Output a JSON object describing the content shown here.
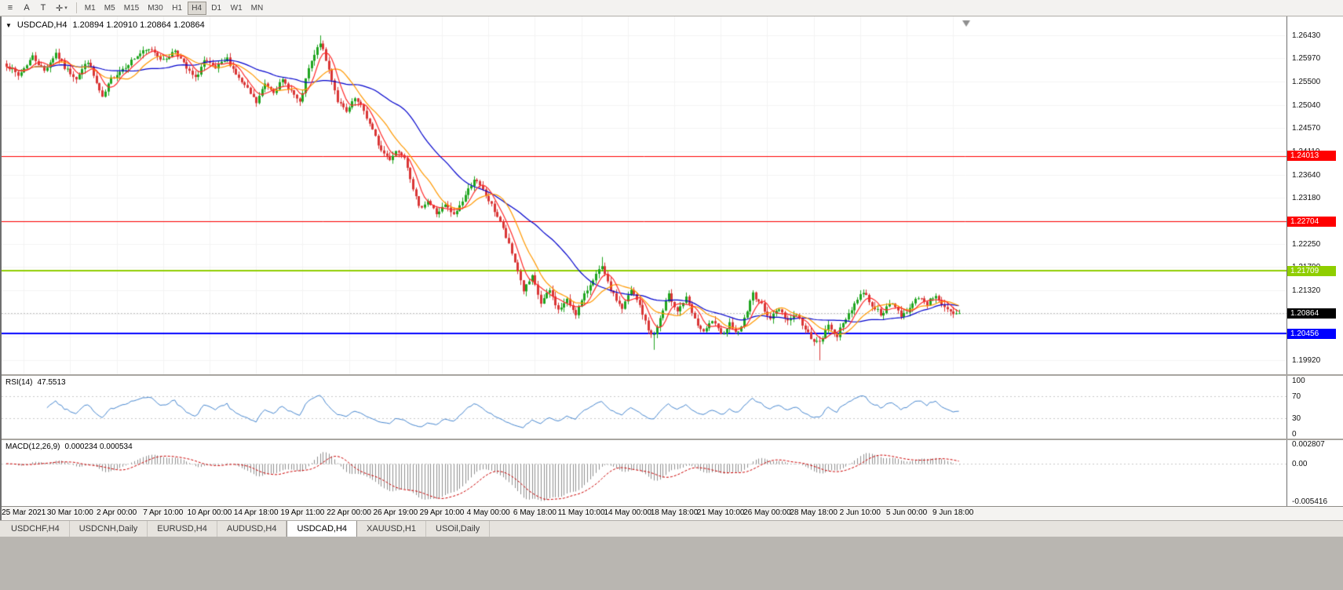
{
  "toolbar": {
    "tools": [
      {
        "name": "menu",
        "glyph": "≡"
      },
      {
        "name": "font",
        "glyph": "A"
      },
      {
        "name": "text",
        "glyph": "T"
      },
      {
        "name": "crosshair",
        "glyph": "✛",
        "caret": "▾"
      }
    ],
    "timeframes": [
      {
        "label": "M1",
        "active": false
      },
      {
        "label": "M5",
        "active": false
      },
      {
        "label": "M15",
        "active": false
      },
      {
        "label": "M30",
        "active": false
      },
      {
        "label": "H1",
        "active": false
      },
      {
        "label": "H4",
        "active": true
      },
      {
        "label": "D1",
        "active": false
      },
      {
        "label": "W1",
        "active": false
      },
      {
        "label": "MN",
        "active": false
      }
    ]
  },
  "tabs": [
    {
      "label": "USDCHF,H4",
      "active": false
    },
    {
      "label": "USDCNH,Daily",
      "active": false
    },
    {
      "label": "EURUSD,H4",
      "active": false
    },
    {
      "label": "AUDUSD,H4",
      "active": false
    },
    {
      "label": "USDCAD,H4",
      "active": true
    },
    {
      "label": "XAUUSD,H1",
      "active": false
    },
    {
      "label": "USOil,Daily",
      "active": false
    }
  ],
  "chart_data": [
    {
      "type": "candlestick",
      "title": "USDCAD,H4",
      "collapse_glyph": "▼",
      "ohlc_text": "1.20894 1.20910 1.20864 1.20864",
      "y_range": [
        1.1964,
        1.2681
      ],
      "y_ticks": [
        "1.26430",
        "1.25970",
        "1.25500",
        "1.25040",
        "1.24570",
        "1.24110",
        "1.23640",
        "1.23180",
        "1.22720",
        "1.22250",
        "1.21790",
        "1.21320",
        "1.20850",
        "1.20390",
        "1.19920"
      ],
      "x_labels": [
        "25 Mar 2021",
        "30 Mar 10:00",
        "2 Apr 00:00",
        "7 Apr 10:00",
        "10 Apr 00:00",
        "14 Apr 18:00",
        "19 Apr 11:00",
        "22 Apr 00:00",
        "26 Apr 19:00",
        "29 Apr 10:00",
        "4 May 00:00",
        "6 May 18:00",
        "11 May 10:00",
        "14 May 00:00",
        "18 May 18:00",
        "21 May 10:00",
        "26 May 00:00",
        "28 May 18:00",
        "2 Jun 10:00",
        "5 Jun 00:00",
        "9 Jun 18:00"
      ],
      "candle_count": 329,
      "colors": {
        "bull": "#1fa51f",
        "bear": "#d93636",
        "grid": "#f3f3f3",
        "bid_line": "#bfbfbf",
        "shift_marker": "#8f8f8f"
      },
      "moving_averages": [
        {
          "period": 34,
          "color": "#0000cd"
        },
        {
          "period": 13,
          "color": "#ff9900"
        },
        {
          "period": 6,
          "color": "#ff2a2a"
        }
      ],
      "hlines": [
        {
          "price": 1.24013,
          "label": "1.24013",
          "color": "#ff0000",
          "width": 1
        },
        {
          "price": 1.22704,
          "label": "1.22704",
          "color": "#ff0000",
          "width": 1
        },
        {
          "price": 1.21709,
          "label": "1.21709",
          "color": "#8fce00",
          "width": 2
        },
        {
          "price": 1.20456,
          "label": "1.20456",
          "color": "#0000ff",
          "width": 2
        }
      ],
      "current_price": {
        "value": 1.20864,
        "label": "1.20864",
        "box_color": "#000000"
      },
      "price_path": [
        [
          0,
          1.2585
        ],
        [
          4,
          1.2562
        ],
        [
          9,
          1.2601
        ],
        [
          13,
          1.2572
        ],
        [
          17,
          1.2608
        ],
        [
          20,
          1.2578
        ],
        [
          24,
          1.2558
        ],
        [
          28,
          1.2592
        ],
        [
          33,
          1.2516
        ],
        [
          36,
          1.2556
        ],
        [
          41,
          1.2582
        ],
        [
          46,
          1.2607
        ],
        [
          50,
          1.2616
        ],
        [
          54,
          1.2592
        ],
        [
          58,
          1.2614
        ],
        [
          62,
          1.2576
        ],
        [
          65,
          1.2556
        ],
        [
          68,
          1.2592
        ],
        [
          72,
          1.2576
        ],
        [
          76,
          1.2596
        ],
        [
          80,
          1.2556
        ],
        [
          83,
          1.2534
        ],
        [
          86,
          1.2508
        ],
        [
          89,
          1.2546
        ],
        [
          92,
          1.2532
        ],
        [
          95,
          1.2552
        ],
        [
          98,
          1.2532
        ],
        [
          101,
          1.2506
        ],
        [
          104,
          1.2576
        ],
        [
          108,
          1.263
        ],
        [
          110,
          1.2592
        ],
        [
          112,
          1.2556
        ],
        [
          114,
          1.2512
        ],
        [
          117,
          1.2488
        ],
        [
          120,
          1.2516
        ],
        [
          123,
          1.2492
        ],
        [
          126,
          1.2452
        ],
        [
          129,
          1.2412
        ],
        [
          132,
          1.2396
        ],
        [
          134,
          1.2412
        ],
        [
          137,
          1.2402
        ],
        [
          140,
          1.2338
        ],
        [
          142,
          1.2297
        ],
        [
          145,
          1.2312
        ],
        [
          148,
          1.2286
        ],
        [
          151,
          1.2302
        ],
        [
          154,
          1.2282
        ],
        [
          157,
          1.2312
        ],
        [
          161,
          1.2356
        ],
        [
          164,
          1.2332
        ],
        [
          167,
          1.2302
        ],
        [
          170,
          1.227
        ],
        [
          173,
          1.2222
        ],
        [
          176,
          1.2172
        ],
        [
          178,
          1.2132
        ],
        [
          181,
          1.2158
        ],
        [
          184,
          1.2106
        ],
        [
          187,
          1.2132
        ],
        [
          190,
          1.2092
        ],
        [
          193,
          1.2112
        ],
        [
          196,
          1.2086
        ],
        [
          199,
          1.2122
        ],
        [
          202,
          1.2156
        ],
        [
          205,
          1.2178
        ],
        [
          207,
          1.2146
        ],
        [
          209,
          1.2122
        ],
        [
          212,
          1.2096
        ],
        [
          215,
          1.2132
        ],
        [
          218,
          1.2102
        ],
        [
          221,
          1.2052
        ],
        [
          223,
          1.2042
        ],
        [
          225,
          1.2076
        ],
        [
          228,
          1.2122
        ],
        [
          231,
          1.2092
        ],
        [
          234,
          1.2116
        ],
        [
          237,
          1.2072
        ],
        [
          240,
          1.2046
        ],
        [
          243,
          1.2072
        ],
        [
          246,
          1.2042
        ],
        [
          249,
          1.2066
        ],
        [
          252,
          1.2046
        ],
        [
          255,
          1.2092
        ],
        [
          257,
          1.2126
        ],
        [
          260,
          1.2102
        ],
        [
          263,
          1.2076
        ],
        [
          266,
          1.2096
        ],
        [
          269,
          1.2072
        ],
        [
          272,
          1.2086
        ],
        [
          275,
          1.2052
        ],
        [
          278,
          1.2032
        ],
        [
          280,
          1.2026
        ],
        [
          283,
          1.2062
        ],
        [
          286,
          1.2042
        ],
        [
          289,
          1.2076
        ],
        [
          292,
          1.2106
        ],
        [
          295,
          1.213
        ],
        [
          298,
          1.2102
        ],
        [
          301,
          1.2086
        ],
        [
          305,
          1.2106
        ],
        [
          308,
          1.2082
        ],
        [
          311,
          1.2096
        ],
        [
          314,
          1.212
        ],
        [
          317,
          1.2106
        ],
        [
          320,
          1.2124
        ],
        [
          323,
          1.2096
        ],
        [
          326,
          1.2082
        ],
        [
          328,
          1.20864
        ]
      ],
      "spikes": [
        {
          "i": 17,
          "high": 1.2616
        },
        {
          "i": 86,
          "low": 1.25
        },
        {
          "i": 108,
          "high": 1.2643
        },
        {
          "i": 205,
          "high": 1.2199
        },
        {
          "i": 223,
          "low": 1.2013
        },
        {
          "i": 280,
          "low": 1.1992
        }
      ]
    },
    {
      "type": "line",
      "title": "RSI(14)",
      "value": "47.5513",
      "period": 14,
      "color": "#4787d0",
      "y_range": [
        0,
        100
      ],
      "levels": [
        {
          "label": "100",
          "value": 100
        },
        {
          "label": "70",
          "value": 70
        },
        {
          "label": "30",
          "value": 30
        },
        {
          "label": "0",
          "value": 0
        }
      ]
    },
    {
      "type": "macd",
      "title": "MACD(12,26,9)",
      "values": "0.000234 0.000534",
      "fast": 12,
      "slow": 26,
      "signal": 9,
      "hist_color": "#8f8f8f",
      "signal_color": "#cc0000",
      "y_range": [
        -0.005416,
        0.002807
      ],
      "axis": [
        {
          "label": "0.002807",
          "value": 0.002807
        },
        {
          "label": "0.00",
          "value": 0
        },
        {
          "label": "-0.005416",
          "value": -0.005416
        }
      ]
    }
  ]
}
